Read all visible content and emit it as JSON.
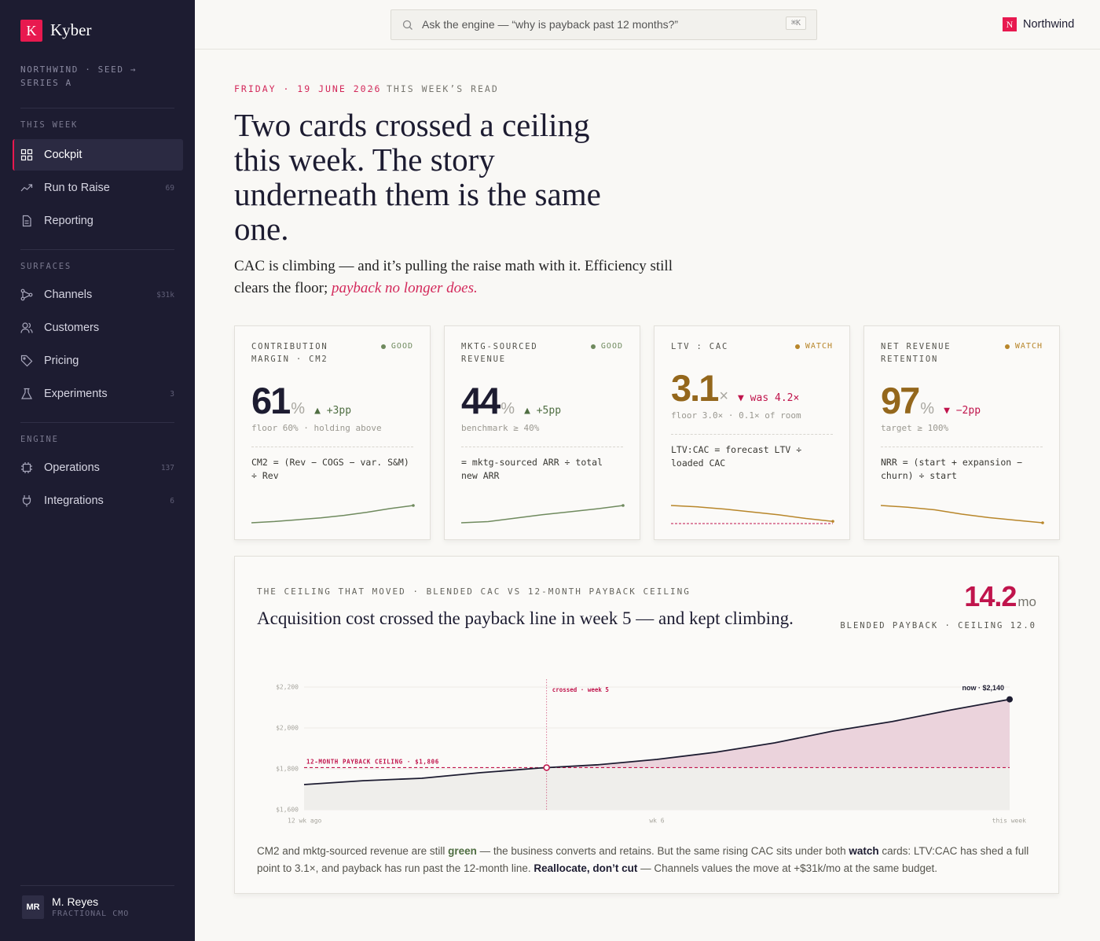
{
  "sidebar": {
    "brand_initial": "K",
    "brand": "Kyber",
    "context": "NORTHWIND · SEED → SERIES A",
    "sections": [
      {
        "title": "THIS WEEK",
        "items": [
          {
            "label": "Cockpit",
            "active": true
          },
          {
            "label": "Run to Raise",
            "badge": 69
          },
          {
            "label": "Reporting"
          }
        ]
      },
      {
        "title": "SURFACES",
        "items": [
          {
            "label": "Channels",
            "badge": "$31k"
          },
          {
            "label": "Customers"
          },
          {
            "label": "Pricing"
          },
          {
            "label": "Experiments",
            "badge": 3
          }
        ]
      },
      {
        "title": "ENGINE",
        "items": [
          {
            "label": "Operations",
            "badge": 137
          },
          {
            "label": "Integrations",
            "badge": 6
          }
        ]
      }
    ],
    "user": {
      "initials": "MR",
      "name": "M. Reyes",
      "role": "FRACTIONAL CMO"
    }
  },
  "topbar": {
    "search_placeholder": "Ask the engine — “why is payback past 12 months?”",
    "shortcut": "⌘K",
    "workspace_initial": "N",
    "workspace": "Northwind"
  },
  "header": {
    "date": "FRIDAY · 19 JUNE 2026",
    "kicker": "THIS WEEK’S READ",
    "headline": "Two cards crossed a ceiling this week. The story underneath them is the same one.",
    "dek": "CAC is climbing — and it’s pulling the raise math with it. Efficiency still clears the floor; ",
    "dek_emphasis": "payback no longer does."
  },
  "cards": [
    {
      "label": "CONTRIBUTION MARGIN · CM2",
      "status": "GOOD",
      "value": 61,
      "unit": "%",
      "delta": "▲ +3pp",
      "note": "floor 60% · holding above",
      "formula": "CM2 = (Rev − COGS − var. S&M) ÷ Rev",
      "color": "#6f8a5e",
      "value_color": "#1d1c31",
      "delta_color": "#4f6e42",
      "spark": [
        58.2,
        58.4,
        58.7,
        59.0,
        59.4,
        59.9,
        60.5,
        61.0
      ]
    },
    {
      "label": "MKTG-SOURCED REVENUE",
      "status": "GOOD",
      "value": 44,
      "unit": "%",
      "delta": "▲ +5pp",
      "note": "benchmark ≥ 40%",
      "formula": "= mktg-sourced ARR ÷ total new ARR",
      "color": "#6f8a5e",
      "value_color": "#1d1c31",
      "delta_color": "#4f6e42",
      "spark": [
        41.0,
        41.2,
        41.8,
        42.4,
        42.9,
        43.4,
        44.0
      ]
    },
    {
      "label": "LTV : CAC",
      "status": "WATCH",
      "value": 3.1,
      "unit": "×",
      "delta": "▼ was 4.2×",
      "note": "floor 3.0× · 0.1× of room",
      "formula": "LTV:CAC = forecast LTV ÷ loaded CAC",
      "color": "#b8862a",
      "value_color": "#94671c",
      "delta_color": "#c0144c",
      "spark": [
        4.2,
        4.1,
        3.95,
        3.75,
        3.55,
        3.3,
        3.1
      ],
      "spark_floor": 3.0,
      "floor_color": "#c0144c"
    },
    {
      "label": "NET REVENUE RETENTION",
      "status": "WATCH",
      "value": 97,
      "unit": "%",
      "delta": "▼ −2pp",
      "note": "target ≥ 100%",
      "formula": "NRR = (start + expansion − churn) ÷ start",
      "color": "#b8862a",
      "value_color": "#94671c",
      "delta_color": "#c0144c",
      "spark": [
        99.0,
        98.8,
        98.5,
        98.0,
        97.6,
        97.3,
        97.0
      ]
    }
  ],
  "panel": {
    "kicker": "THE CEILING THAT MOVED · BLENDED CAC VS 12-MONTH PAYBACK CEILING",
    "title": "Acquisition cost crossed the payback line in week 5 — and kept climbing.",
    "stat": 14.2,
    "stat_unit": "mo",
    "stat_label": "BLENDED PAYBACK · CEILING 12.0",
    "footnote": [
      "CM2 and mktg-sourced revenue are still ",
      "green",
      " — the business converts and retains. But the same rising CAC sits under both ",
      "watch",
      " cards: LTV:CAC has shed a full point to 3.1×, and payback has run past the 12-month line. ",
      "Reallocate, don’t cut",
      " — Channels values the move at +$31k/mo at the same budget."
    ]
  },
  "chart_data": {
    "type": "line",
    "categories": [
      "12 wk ago",
      null,
      null,
      null,
      null,
      null,
      "wk 6",
      null,
      null,
      null,
      null,
      null,
      "this week"
    ],
    "values": [
      1723,
      1742,
      1754,
      1781,
      1804,
      1820,
      1846,
      1881,
      1927,
      1985,
      2031,
      2088,
      2140
    ],
    "value_labels": [
      null,
      null,
      null,
      null,
      null,
      null,
      null,
      null,
      null,
      null,
      null,
      null,
      "now · $2,140"
    ],
    "color": "#1d1c31",
    "fill_below": "#efeeeb",
    "fill_above": "#ebd3dc",
    "ylim": [
      1600,
      2200
    ],
    "yticks": [
      {
        "value": 1600,
        "label": "$1,600"
      },
      {
        "value": 1800,
        "label": "$1,800"
      },
      {
        "value": 2000,
        "label": "$2,000"
      },
      {
        "value": 2200,
        "label": "$2,200"
      }
    ],
    "grid": true,
    "ceiling": {
      "value": 1806,
      "label": "12-MONTH PAYBACK CEILING · $1,806",
      "color": "#c0144c"
    },
    "crossing_label": "crossed · week 5"
  }
}
